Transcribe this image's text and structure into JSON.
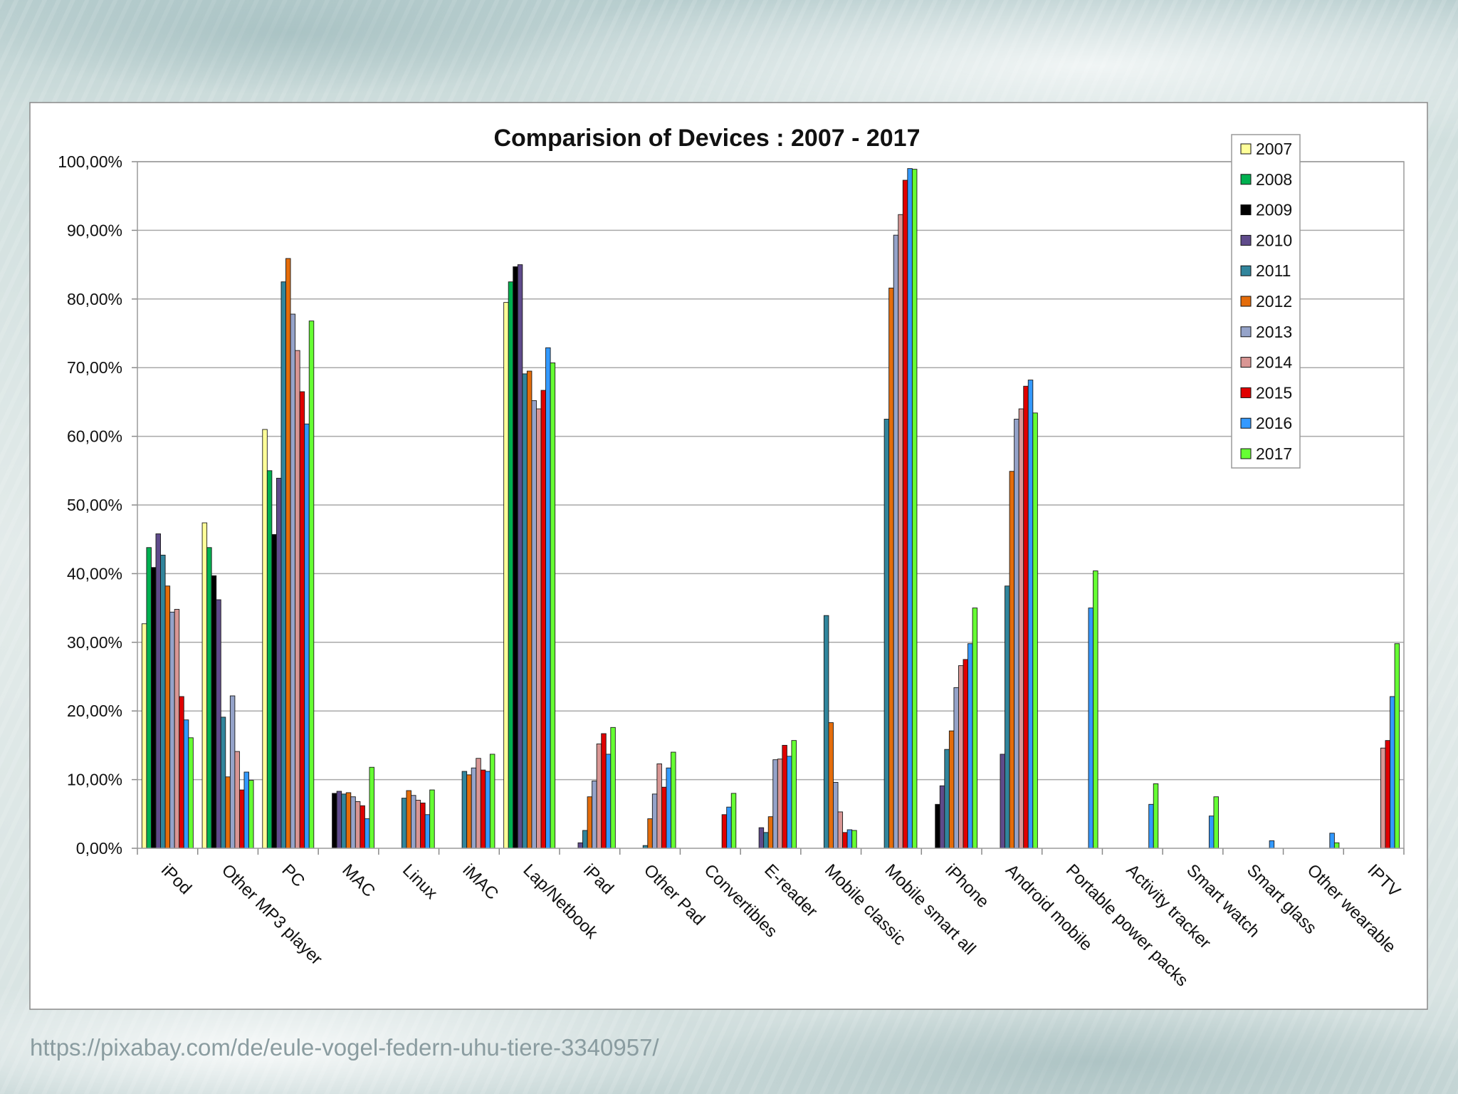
{
  "chart_data": {
    "type": "bar",
    "title": "Comparision of Devices : 2007 - 2017",
    "xlabel": "",
    "ylabel": "",
    "ylim": [
      0,
      100
    ],
    "yticks": [
      "0,00%",
      "10,00%",
      "20,00%",
      "30,00%",
      "40,00%",
      "50,00%",
      "60,00%",
      "70,00%",
      "80,00%",
      "90,00%",
      "100,00%"
    ],
    "grid": true,
    "legend_position": "top-right",
    "categories": [
      "iPod",
      "Other MP3 player",
      "PC",
      "MAC",
      "Linux",
      "iMAC",
      "Lap/Netbook",
      "iPad",
      "Other Pad",
      "Convertibles",
      "E-reader",
      "Mobile classic",
      "Mobile smart all",
      "iPhone",
      "Android mobile",
      "Portable power packs",
      "Activity tracker",
      "Smart watch",
      "Smart glass",
      "Other wearable",
      "IPTV"
    ],
    "series": [
      {
        "name": "2007",
        "color": "#FFFF99",
        "values": [
          32.7,
          47.4,
          61.0,
          null,
          null,
          null,
          79.5,
          null,
          null,
          null,
          null,
          null,
          null,
          null,
          null,
          null,
          null,
          null,
          null,
          null,
          null
        ]
      },
      {
        "name": "2008",
        "color": "#00B050",
        "values": [
          43.8,
          43.8,
          55.0,
          null,
          null,
          null,
          82.5,
          null,
          null,
          null,
          null,
          null,
          null,
          null,
          null,
          null,
          null,
          null,
          null,
          null,
          null
        ]
      },
      {
        "name": "2009",
        "color": "#000000",
        "values": [
          40.9,
          39.7,
          45.7,
          8.0,
          null,
          null,
          84.7,
          null,
          null,
          null,
          null,
          null,
          null,
          6.4,
          null,
          null,
          null,
          null,
          null,
          null,
          null
        ]
      },
      {
        "name": "2010",
        "color": "#5F4B8B",
        "values": [
          45.8,
          36.2,
          53.9,
          8.3,
          null,
          null,
          85.0,
          0.8,
          null,
          null,
          3.0,
          null,
          null,
          9.1,
          13.7,
          null,
          null,
          null,
          null,
          null,
          null
        ]
      },
      {
        "name": "2011",
        "color": "#31859C",
        "values": [
          42.7,
          19.1,
          82.5,
          7.9,
          7.3,
          11.2,
          69.1,
          2.6,
          0.4,
          null,
          2.3,
          33.9,
          62.5,
          14.4,
          38.2,
          null,
          null,
          null,
          null,
          null,
          null
        ]
      },
      {
        "name": "2012",
        "color": "#E46C0A",
        "values": [
          38.2,
          10.4,
          85.9,
          8.1,
          8.4,
          10.7,
          69.5,
          7.5,
          4.3,
          null,
          4.6,
          18.3,
          81.6,
          17.1,
          54.9,
          null,
          null,
          null,
          null,
          null,
          null
        ]
      },
      {
        "name": "2013",
        "color": "#95A3C9",
        "values": [
          34.4,
          22.2,
          77.8,
          7.5,
          7.7,
          11.7,
          65.2,
          9.8,
          7.9,
          null,
          12.9,
          9.6,
          89.3,
          23.4,
          62.5,
          null,
          null,
          null,
          null,
          null,
          null
        ]
      },
      {
        "name": "2014",
        "color": "#D99694",
        "values": [
          34.8,
          14.1,
          72.5,
          6.8,
          7.0,
          13.1,
          64.0,
          15.2,
          12.3,
          null,
          13.0,
          5.3,
          92.3,
          26.6,
          64.0,
          null,
          null,
          null,
          null,
          null,
          14.6
        ]
      },
      {
        "name": "2015",
        "color": "#E00000",
        "values": [
          22.1,
          8.5,
          66.5,
          6.2,
          6.6,
          11.4,
          66.7,
          16.7,
          8.9,
          4.9,
          15.0,
          2.3,
          97.3,
          27.5,
          67.3,
          null,
          null,
          null,
          null,
          null,
          15.7
        ]
      },
      {
        "name": "2016",
        "color": "#3399FF",
        "values": [
          18.7,
          11.1,
          61.8,
          4.3,
          4.9,
          11.2,
          72.9,
          13.7,
          11.7,
          6.0,
          13.4,
          2.7,
          99.0,
          29.8,
          68.2,
          35.0,
          6.4,
          4.7,
          1.1,
          2.2,
          22.1
        ]
      },
      {
        "name": "2017",
        "color": "#66FF33",
        "values": [
          16.1,
          9.9,
          76.8,
          11.8,
          8.5,
          13.7,
          70.7,
          17.6,
          14.0,
          8.0,
          15.7,
          2.6,
          98.9,
          35.0,
          63.4,
          40.4,
          9.4,
          7.5,
          null,
          0.8,
          29.8
        ]
      }
    ]
  },
  "source_url": "https://pixabay.com/de/eule-vogel-federn-uhu-tiere-3340957/"
}
